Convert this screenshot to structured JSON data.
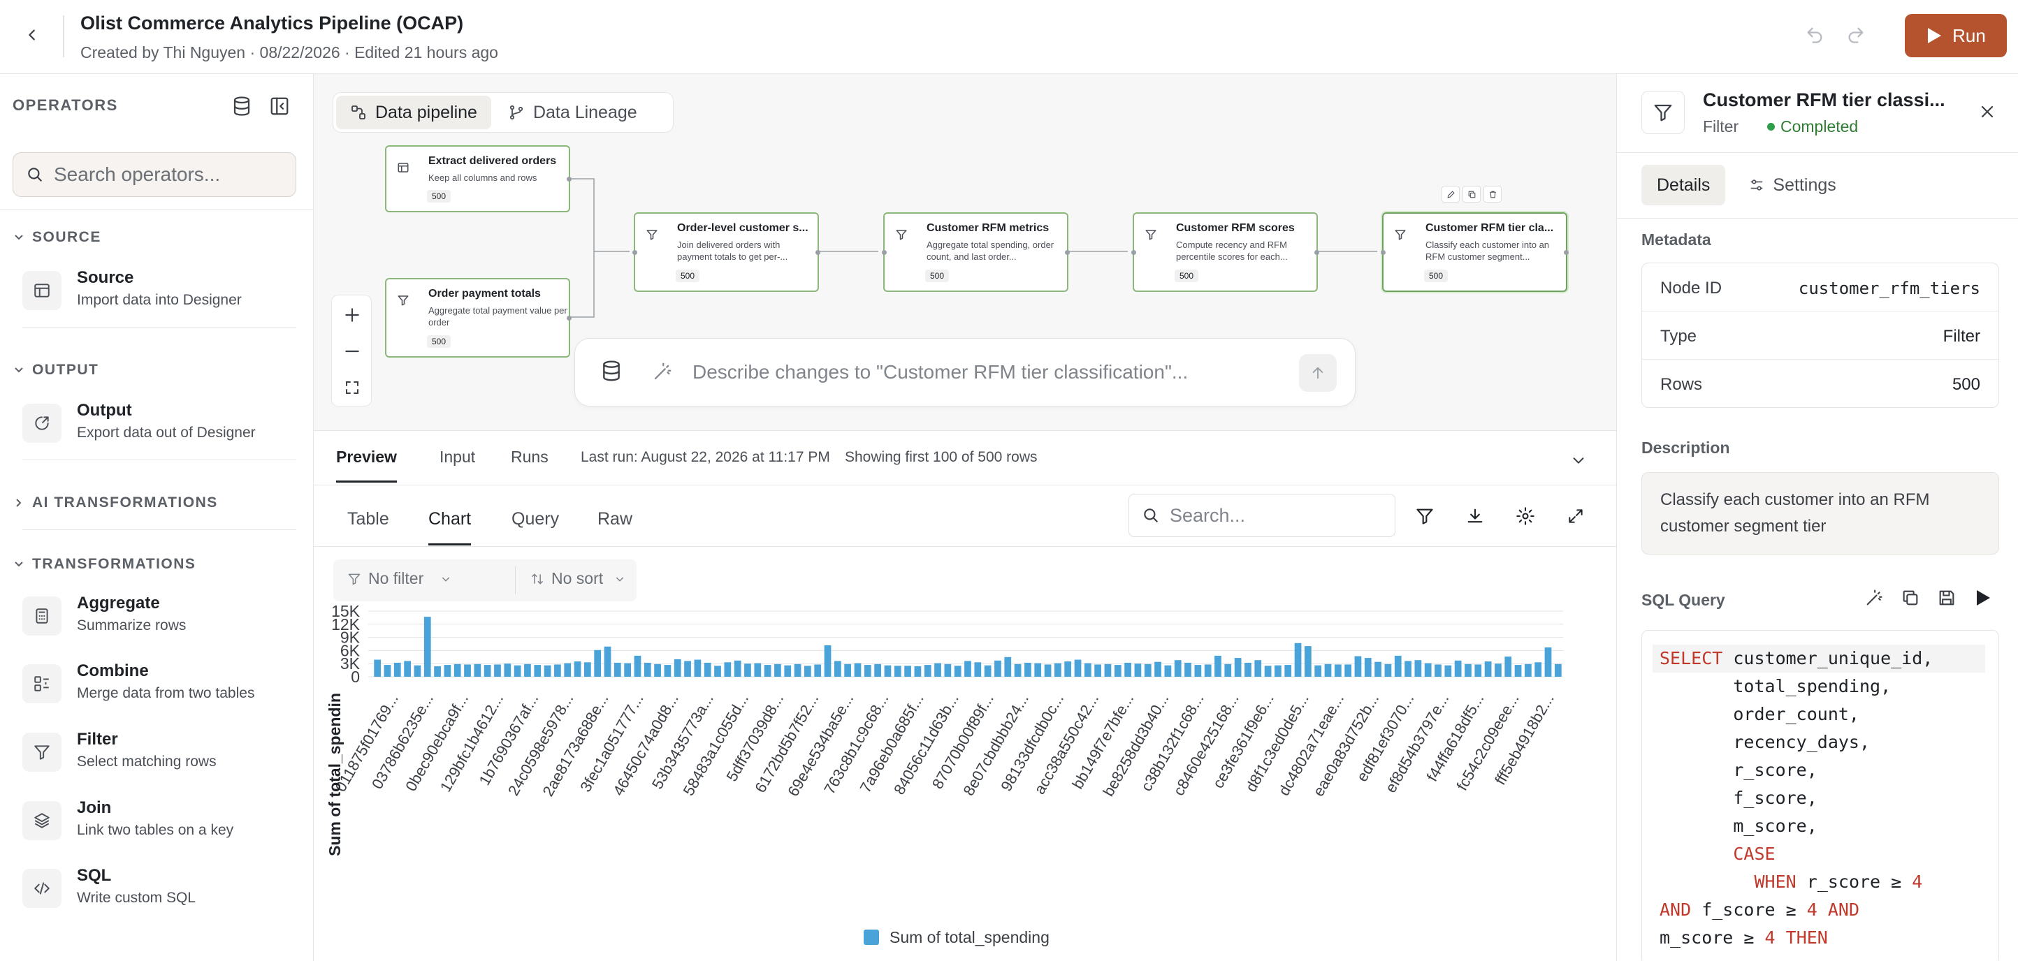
{
  "header": {
    "title": "Olist Commerce Analytics Pipeline (OCAP)",
    "meta": "Created by Thi Nguyen · 08/22/2026 · Edited 21 hours ago",
    "run_label": "Run"
  },
  "sidebar": {
    "title": "OPERATORS",
    "search_placeholder": "Search operators...",
    "sections": {
      "source": "SOURCE",
      "output": "OUTPUT",
      "ai": "AI TRANSFORMATIONS",
      "transformations": "TRANSFORMATIONS"
    },
    "items": {
      "source": {
        "name": "Source",
        "desc": "Import data into Designer",
        "icon": "table-icon"
      },
      "output": {
        "name": "Output",
        "desc": "Export data out of Designer",
        "icon": "export-icon"
      },
      "aggregate": {
        "name": "Aggregate",
        "desc": "Summarize rows",
        "icon": "calculator-icon"
      },
      "combine": {
        "name": "Combine",
        "desc": "Merge data from two tables",
        "icon": "combine-icon"
      },
      "filter": {
        "name": "Filter",
        "desc": "Select matching rows",
        "icon": "filter-icon"
      },
      "join": {
        "name": "Join",
        "desc": "Link two tables on a key",
        "icon": "layers-icon"
      },
      "sql": {
        "name": "SQL",
        "desc": "Write custom SQL",
        "icon": "code-icon"
      }
    }
  },
  "canvas": {
    "tabs": [
      "Data pipeline",
      "Data Lineage"
    ],
    "nodes": {
      "extract": {
        "title": "Extract delivered orders",
        "desc": "Keep all columns and rows",
        "rows": "500"
      },
      "payment": {
        "title": "Order payment totals",
        "desc": "Aggregate total payment value per order",
        "rows": "500"
      },
      "order_level": {
        "title": "Order-level customer s...",
        "desc": "Join delivered orders with payment totals to get per-...",
        "rows": "500"
      },
      "metrics": {
        "title": "Customer RFM metrics",
        "desc": "Aggregate total spending, order count, and last order...",
        "rows": "500"
      },
      "scores": {
        "title": "Customer RFM scores",
        "desc": "Compute recency and RFM percentile scores for each...",
        "rows": "500"
      },
      "tiers": {
        "title": "Customer RFM tier cla...",
        "desc": "Classify each customer into an RFM customer segment...",
        "rows": "500"
      }
    },
    "prompt_placeholder": "Describe changes to \"Customer RFM tier classification\"..."
  },
  "bottom": {
    "tabs": [
      "Preview",
      "Input",
      "Runs"
    ],
    "last_run": "Last run: August 22, 2026 at 11:17 PM",
    "showing": "Showing first 100 of 500 rows",
    "view_tabs": [
      "Table",
      "Chart",
      "Query",
      "Raw"
    ],
    "search_placeholder": "Search...",
    "filter_label": "No filter",
    "sort_label": "No sort"
  },
  "chart_data": {
    "type": "bar",
    "ylabel": "Sum of total_spendin",
    "legend": "Sum of total_spending",
    "legend_position": "bottom",
    "ylim": [
      0,
      15000
    ],
    "yticks": [
      "0",
      "3K",
      "6K",
      "9K",
      "12K",
      "15K"
    ],
    "tick_labels": [
      "011875f01769...",
      "03786b6235e...",
      "0bec90ebca9f...",
      "129bfc1b4612...",
      "1b7690367af...",
      "24c0598e5978...",
      "2ae8173a688e...",
      "3fec1a051777...",
      "46450c74a0d8...",
      "53b3435773a...",
      "58483a1c055d...",
      "5dff37039d8...",
      "6172bd5b7f52...",
      "69e4e534ba5e...",
      "763c8b1c9c68...",
      "7a96eb0a685f...",
      "84056c11d63b...",
      "87070b00f89f...",
      "8e07cbdbbb24...",
      "98133dfcdb0c...",
      "acc38a550c42...",
      "bb149f7e7bfe...",
      "be8258dd3b40...",
      "c38b132f1c68...",
      "c8460e425168...",
      "ce3fe361f9e6...",
      "d8f1c3ed0de5...",
      "dc4802a71eae...",
      "eae0a83d752b...",
      "edf81ef3070...",
      "ef8d54b3797e...",
      "f44ffa618df5...",
      "fc54c2c09eee...",
      "fff5eb4918b2..."
    ],
    "values": [
      3900,
      2700,
      3200,
      3600,
      2600,
      13700,
      2400,
      2700,
      2900,
      2800,
      2900,
      2700,
      2800,
      3000,
      2600,
      2900,
      2700,
      2600,
      2800,
      3100,
      3500,
      3300,
      6100,
      6900,
      3200,
      3100,
      4800,
      3200,
      2900,
      2700,
      4000,
      3600,
      3900,
      3200,
      2500,
      3300,
      3700,
      3000,
      3100,
      2700,
      2900,
      2600,
      2900,
      2500,
      2800,
      7200,
      3600,
      2900,
      3100,
      2700,
      2900,
      2600,
      2500,
      2500,
      2400,
      2700,
      3100,
      2900,
      2500,
      3600,
      3300,
      2600,
      3700,
      4500,
      2900,
      3200,
      3100,
      2800,
      3100,
      3500,
      3900,
      3100,
      2800,
      2900,
      2700,
      3200,
      3000,
      2900,
      3400,
      2600,
      3800,
      3200,
      2700,
      2800,
      4800,
      2900,
      4300,
      3200,
      3800,
      2500,
      2600,
      2700,
      7700,
      7000,
      2600,
      2900,
      2800,
      2800,
      4700,
      4300,
      3400,
      2900,
      4800,
      3600,
      3800,
      3100,
      2800,
      2600,
      3700,
      2900,
      2800,
      3500,
      3000,
      4600,
      2700,
      2900,
      3300,
      6700,
      2900
    ]
  },
  "right_panel": {
    "title": "Customer RFM tier classi...",
    "type": "Filter",
    "status": "Completed",
    "tabs": [
      "Details",
      "Settings"
    ],
    "metadata_label": "Metadata",
    "metadata": [
      {
        "k": "Node ID",
        "v": "customer_rfm_tiers"
      },
      {
        "k": "Type",
        "v": "Filter"
      },
      {
        "k": "Rows",
        "v": "500"
      }
    ],
    "description_label": "Description",
    "description": "Classify each customer into an RFM customer segment tier",
    "sql_label": "SQL Query"
  },
  "colors": {
    "accent": "#b4532e",
    "bar": "#4aa3d8",
    "node_border": "#8ab77a",
    "status_green": "#2e9e48",
    "keyword": "#c0392b"
  }
}
